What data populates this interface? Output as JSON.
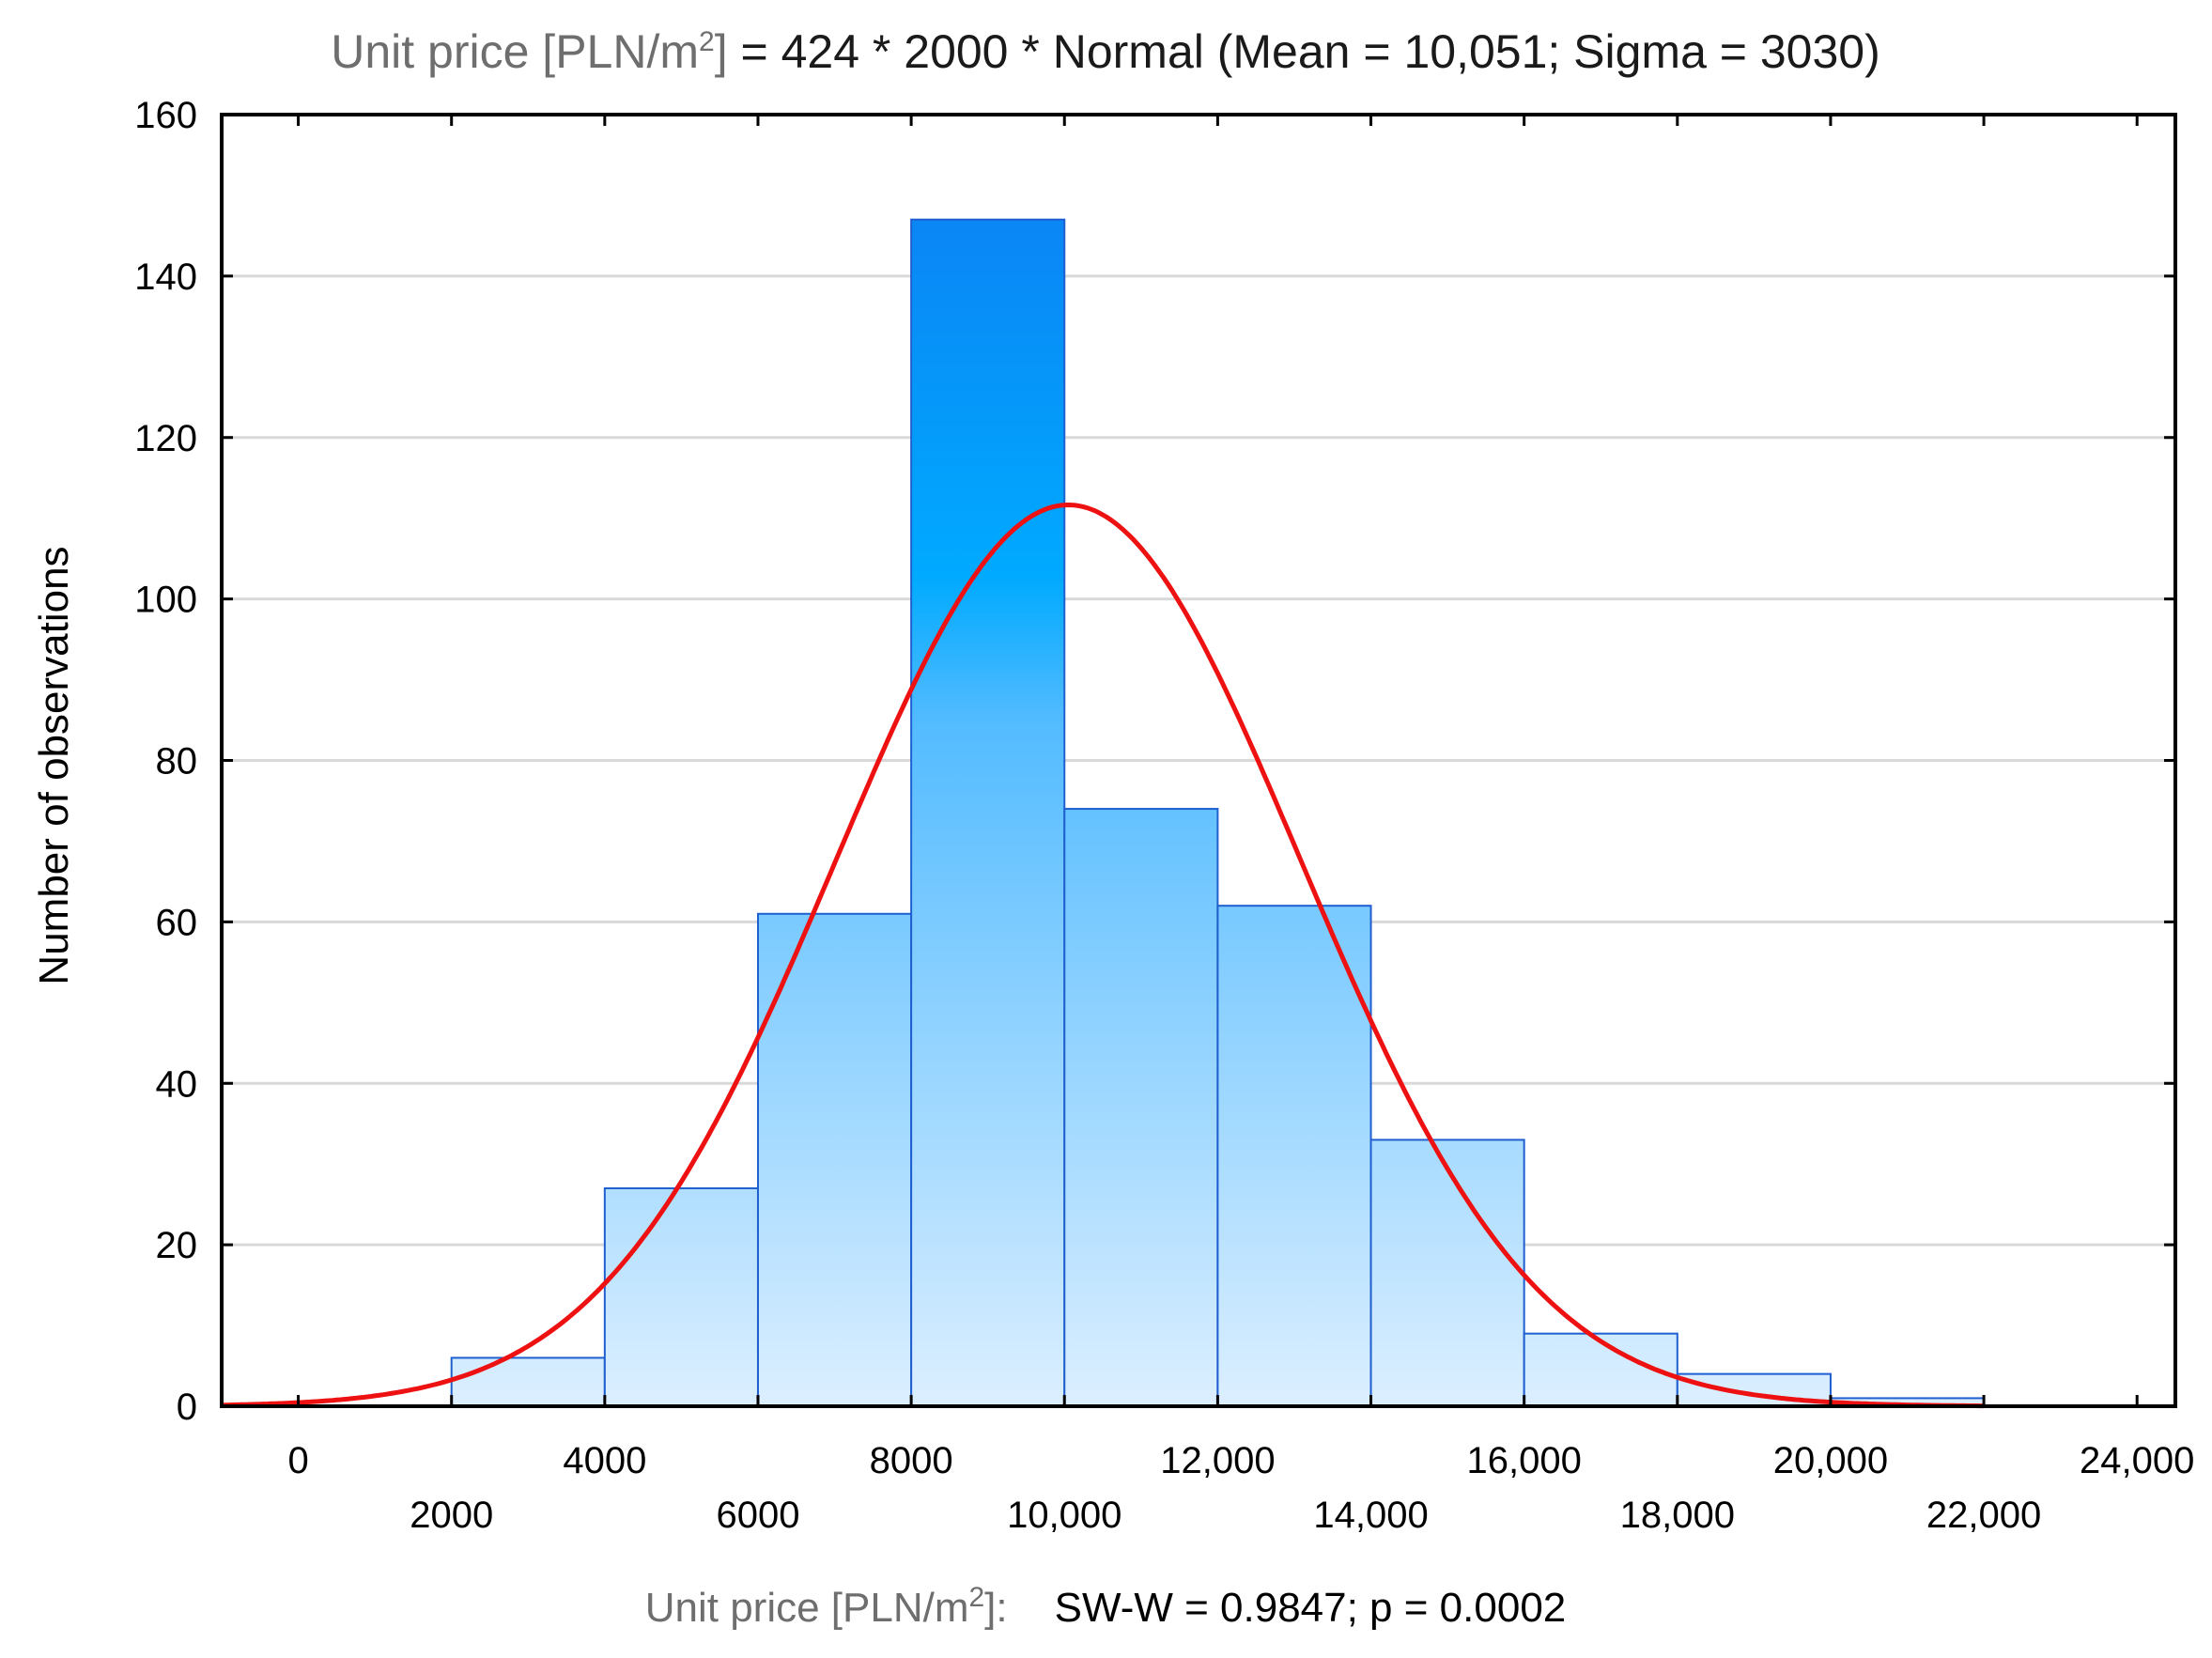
{
  "chart_data": {
    "type": "bar",
    "title": {
      "var_prefix": "Unit price [PLN/m",
      "var_sup": "2",
      "var_suffix": "]",
      "formula": " = 424 * 2000 * Normal (Mean = 10,051; Sigma = 3030)"
    },
    "ylabel": "Number of observations",
    "xlabel": {
      "prefix": "Unit price [PLN/m",
      "sup": "2",
      "suffix": "]:",
      "stat": "SW-W = 0.9847; p = 0.0002"
    },
    "xlim": [
      -1000,
      24500
    ],
    "ylim": [
      0,
      160
    ],
    "yticks": [
      0,
      20,
      40,
      60,
      80,
      100,
      120,
      140,
      160
    ],
    "y_tick_labels": [
      "0",
      "20",
      "40",
      "60",
      "80",
      "100",
      "120",
      "140",
      "160"
    ],
    "xticks": [
      0,
      2000,
      4000,
      6000,
      8000,
      10000,
      12000,
      14000,
      16000,
      18000,
      20000,
      22000,
      24000
    ],
    "x_tick_labels": [
      "0",
      "2000",
      "4000",
      "6000",
      "8000",
      "10,000",
      "12,000",
      "14,000",
      "16,000",
      "18,000",
      "20,000",
      "22,000",
      "24,000"
    ],
    "grid": true,
    "bins": [
      {
        "from": 2000,
        "to": 4000,
        "value": 6
      },
      {
        "from": 4000,
        "to": 6000,
        "value": 27
      },
      {
        "from": 6000,
        "to": 8000,
        "value": 61
      },
      {
        "from": 8000,
        "to": 10000,
        "value": 147
      },
      {
        "from": 10000,
        "to": 12000,
        "value": 74
      },
      {
        "from": 12000,
        "to": 14000,
        "value": 62
      },
      {
        "from": 14000,
        "to": 16000,
        "value": 33
      },
      {
        "from": 16000,
        "to": 18000,
        "value": 9
      },
      {
        "from": 18000,
        "to": 20000,
        "value": 4
      },
      {
        "from": 20000,
        "to": 22000,
        "value": 1
      }
    ],
    "normal_fit": {
      "n": 424,
      "bin_width": 2000,
      "mean": 10051,
      "sigma": 3030
    },
    "colors": {
      "curve": "#ee1111",
      "bar_stroke": "#1f5fcf",
      "bar_top": "#0a86f5",
      "bar_mid": "#52bbff",
      "bar_bottom": "#dcefff",
      "grid": "#d9d9d9"
    }
  }
}
